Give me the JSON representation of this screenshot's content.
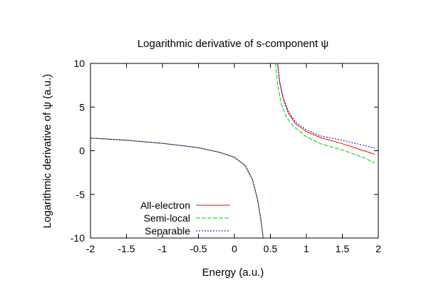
{
  "chart_data": {
    "type": "line",
    "title": "Logarithmic derivative of s-component ψ",
    "xlabel": "Energy (a.u.)",
    "ylabel": "Logarithmic derivative of ψ (a.u.)",
    "xlim": [
      -2,
      2
    ],
    "ylim": [
      -10,
      10
    ],
    "x_ticks": [
      "-2",
      "-1.5",
      "-1",
      "-0.5",
      "0",
      "0.5",
      "1",
      "1.5",
      "2"
    ],
    "y_ticks": [
      "-10",
      "-5",
      "0",
      "5",
      "10"
    ],
    "grid": false,
    "legend_position": "bottom-left",
    "series": [
      {
        "name": "All-electron",
        "color": "#ff0000",
        "dash": "solid",
        "segments": [
          {
            "x": [
              -2.0,
              -1.5,
              -1.0,
              -0.5,
              -0.2,
              0.0,
              0.15,
              0.25,
              0.32,
              0.37,
              0.4
            ],
            "y": [
              1.45,
              1.2,
              0.85,
              0.35,
              -0.2,
              -0.75,
              -1.7,
              -3.3,
              -5.5,
              -8.0,
              -10
            ]
          },
          {
            "x": [
              0.6,
              0.63,
              0.68,
              0.75,
              0.85,
              1.0,
              1.2,
              1.5,
              1.8,
              1.95
            ],
            "y": [
              10,
              7.8,
              5.9,
              4.3,
              3.1,
              2.2,
              1.5,
              0.8,
              0.0,
              -0.4
            ]
          }
        ]
      },
      {
        "name": "Semi-local",
        "color": "#00cc00",
        "dash": "long",
        "segments": [
          {
            "x": [
              -2.0,
              -1.5,
              -1.0,
              -0.5,
              -0.2,
              0.0,
              0.15,
              0.25,
              0.32,
              0.37,
              0.4
            ],
            "y": [
              1.45,
              1.2,
              0.85,
              0.35,
              -0.2,
              -0.75,
              -1.7,
              -3.3,
              -5.5,
              -8.0,
              -10
            ]
          },
          {
            "x": [
              0.57,
              0.6,
              0.65,
              0.72,
              0.82,
              1.0,
              1.2,
              1.5,
              1.8,
              1.95
            ],
            "y": [
              10,
              7.6,
              5.4,
              3.9,
              2.8,
              1.6,
              0.8,
              0.1,
              -0.8,
              -1.4
            ]
          }
        ]
      },
      {
        "name": "Separable",
        "color": "#0000cc",
        "dash": "short",
        "segments": [
          {
            "x": [
              -2.0,
              -1.5,
              -1.0,
              -0.5,
              -0.2,
              0.0,
              0.15,
              0.25,
              0.32,
              0.37,
              0.4
            ],
            "y": [
              1.45,
              1.2,
              0.85,
              0.35,
              -0.2,
              -0.75,
              -1.7,
              -3.3,
              -5.5,
              -8.0,
              -10
            ]
          },
          {
            "x": [
              0.6,
              0.63,
              0.68,
              0.75,
              0.85,
              1.0,
              1.2,
              1.5,
              1.8,
              1.95
            ],
            "y": [
              10,
              7.9,
              6.0,
              4.5,
              3.3,
              2.4,
              1.7,
              1.2,
              0.6,
              0.3
            ]
          }
        ]
      }
    ]
  }
}
